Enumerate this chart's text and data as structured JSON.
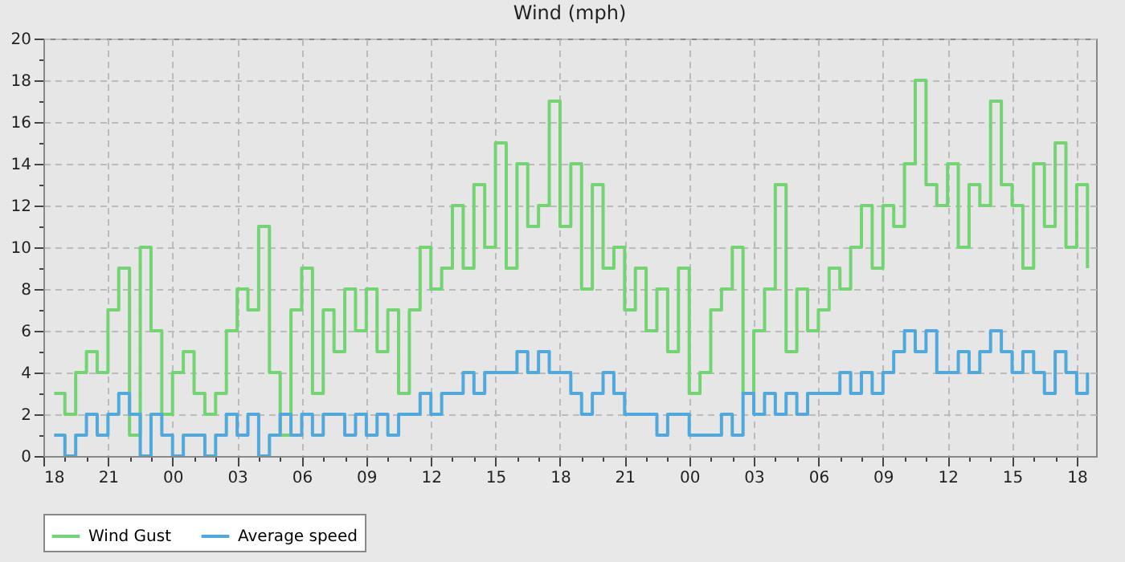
{
  "chart_data": {
    "type": "step",
    "title": "Wind (mph)",
    "xlim": [
      18,
      66.9
    ],
    "xticks": [
      {
        "value": 18,
        "label": "18"
      },
      {
        "value": 19,
        "label": null
      },
      {
        "value": 20,
        "label": null
      },
      {
        "value": 21,
        "label": "21"
      },
      {
        "value": 22,
        "label": null
      },
      {
        "value": 23,
        "label": null
      },
      {
        "value": 24,
        "label": "00"
      },
      {
        "value": 25,
        "label": null
      },
      {
        "value": 26,
        "label": null
      },
      {
        "value": 27,
        "label": "03"
      },
      {
        "value": 28,
        "label": null
      },
      {
        "value": 29,
        "label": null
      },
      {
        "value": 30,
        "label": "06"
      },
      {
        "value": 31,
        "label": null
      },
      {
        "value": 32,
        "label": null
      },
      {
        "value": 33,
        "label": "09"
      },
      {
        "value": 34,
        "label": null
      },
      {
        "value": 35,
        "label": null
      },
      {
        "value": 36,
        "label": "12"
      },
      {
        "value": 37,
        "label": null
      },
      {
        "value": 38,
        "label": null
      },
      {
        "value": 39,
        "label": "15"
      },
      {
        "value": 40,
        "label": null
      },
      {
        "value": 41,
        "label": null
      },
      {
        "value": 42,
        "label": "18"
      },
      {
        "value": 43,
        "label": null
      },
      {
        "value": 44,
        "label": null
      },
      {
        "value": 45,
        "label": "21"
      },
      {
        "value": 46,
        "label": null
      },
      {
        "value": 47,
        "label": null
      },
      {
        "value": 48,
        "label": "00"
      },
      {
        "value": 49,
        "label": null
      },
      {
        "value": 50,
        "label": null
      },
      {
        "value": 51,
        "label": "03"
      },
      {
        "value": 52,
        "label": null
      },
      {
        "value": 53,
        "label": null
      },
      {
        "value": 54,
        "label": "06"
      },
      {
        "value": 55,
        "label": null
      },
      {
        "value": 56,
        "label": null
      },
      {
        "value": 57,
        "label": "09"
      },
      {
        "value": 58,
        "label": null
      },
      {
        "value": 59,
        "label": null
      },
      {
        "value": 60,
        "label": "12"
      },
      {
        "value": 61,
        "label": null
      },
      {
        "value": 62,
        "label": null
      },
      {
        "value": 63,
        "label": "15"
      },
      {
        "value": 64,
        "label": null
      },
      {
        "value": 65,
        "label": null
      },
      {
        "value": 66,
        "label": "18"
      }
    ],
    "ylim": [
      0,
      20
    ],
    "yticks": [
      0,
      {
        "value": 1,
        "label": null
      },
      2,
      {
        "value": 3,
        "label": null
      },
      4,
      {
        "value": 5,
        "label": null
      },
      6,
      {
        "value": 7,
        "label": null
      },
      8,
      {
        "value": 9,
        "label": null
      },
      10,
      {
        "value": 11,
        "label": null
      },
      12,
      {
        "value": 13,
        "label": null
      },
      14,
      {
        "value": 15,
        "label": null
      },
      16,
      {
        "value": 17,
        "label": null
      },
      18,
      {
        "value": 19,
        "label": null
      },
      20
    ],
    "grid": true,
    "legend": "bottom",
    "line_style": "solid",
    "series": [
      {
        "name": "Wind Gust",
        "color": "#72d572",
        "x": [
          18.5,
          19,
          19.5,
          20,
          20.5,
          21,
          21.5,
          22,
          22.5,
          23,
          23.5,
          24,
          24.5,
          25,
          25.5,
          26,
          26.5,
          27,
          27.5,
          28,
          28.5,
          29,
          29.5,
          30,
          30.5,
          31,
          31.5,
          32,
          32.5,
          33,
          33.5,
          34,
          34.5,
          35,
          35.5,
          36,
          36.5,
          37,
          37.5,
          38,
          38.5,
          39,
          39.5,
          40,
          40.5,
          41,
          41.5,
          42,
          42.5,
          43,
          43.5,
          44,
          44.5,
          45,
          45.5,
          46,
          46.5,
          47,
          47.5,
          48,
          48.5,
          49,
          49.5,
          50,
          50.5,
          51,
          51.5,
          52,
          52.5,
          53,
          53.5,
          54,
          54.5,
          55,
          55.5,
          56,
          56.5,
          57,
          57.5,
          58,
          58.5,
          59,
          59.5,
          60,
          60.5,
          61,
          61.5,
          62,
          62.5,
          63,
          63.5,
          64,
          64.5,
          65,
          65.5,
          66,
          66.5
        ],
        "values": [
          3,
          2,
          4,
          5,
          4,
          7,
          9,
          1,
          10,
          6,
          2,
          4,
          5,
          3,
          2,
          3,
          6,
          8,
          7,
          11,
          4,
          1,
          7,
          9,
          3,
          7,
          5,
          8,
          6,
          8,
          5,
          7,
          3,
          7,
          10,
          8,
          9,
          12,
          9,
          13,
          10,
          15,
          9,
          14,
          11,
          12,
          17,
          11,
          14,
          8,
          13,
          9,
          10,
          7,
          9,
          6,
          8,
          5,
          9,
          3,
          4,
          7,
          8,
          10,
          3,
          6,
          8,
          13,
          5,
          8,
          6,
          7,
          9,
          8,
          10,
          12,
          9,
          12,
          11,
          14,
          18,
          13,
          12,
          14,
          10,
          13,
          12,
          17,
          13,
          12,
          9,
          14,
          11,
          15,
          10,
          13,
          9
        ]
      },
      {
        "name": "Average speed",
        "color": "#4fa9dc",
        "x": [
          18.5,
          19,
          19.5,
          20,
          20.5,
          21,
          21.5,
          22,
          22.5,
          23,
          23.5,
          24,
          24.5,
          25,
          25.5,
          26,
          26.5,
          27,
          27.5,
          28,
          28.5,
          29,
          29.5,
          30,
          30.5,
          31,
          31.5,
          32,
          32.5,
          33,
          33.5,
          34,
          34.5,
          35,
          35.5,
          36,
          36.5,
          37,
          37.5,
          38,
          38.5,
          39,
          39.5,
          40,
          40.5,
          41,
          41.5,
          42,
          42.5,
          43,
          43.5,
          44,
          44.5,
          45,
          45.5,
          46,
          46.5,
          47,
          47.5,
          48,
          48.5,
          49,
          49.5,
          50,
          50.5,
          51,
          51.5,
          52,
          52.5,
          53,
          53.5,
          54,
          54.5,
          55,
          55.5,
          56,
          56.5,
          57,
          57.5,
          58,
          58.5,
          59,
          59.5,
          60,
          60.5,
          61,
          61.5,
          62,
          62.5,
          63,
          63.5,
          64,
          64.5,
          65,
          65.5,
          66,
          66.5
        ],
        "values": [
          1,
          0,
          1,
          2,
          1,
          2,
          3,
          2,
          0,
          2,
          1,
          0,
          1,
          1,
          0,
          1,
          2,
          1,
          2,
          0,
          1,
          2,
          1,
          2,
          1,
          2,
          2,
          1,
          2,
          1,
          2,
          1,
          2,
          2,
          3,
          2,
          3,
          3,
          4,
          3,
          4,
          4,
          4,
          5,
          4,
          5,
          4,
          4,
          3,
          2,
          3,
          4,
          3,
          2,
          2,
          2,
          1,
          2,
          2,
          1,
          1,
          1,
          2,
          1,
          3,
          2,
          3,
          2,
          3,
          2,
          3,
          3,
          3,
          4,
          3,
          4,
          3,
          4,
          5,
          6,
          5,
          6,
          4,
          4,
          5,
          4,
          5,
          6,
          5,
          4,
          5,
          4,
          3,
          5,
          4,
          3,
          4
        ]
      }
    ]
  }
}
